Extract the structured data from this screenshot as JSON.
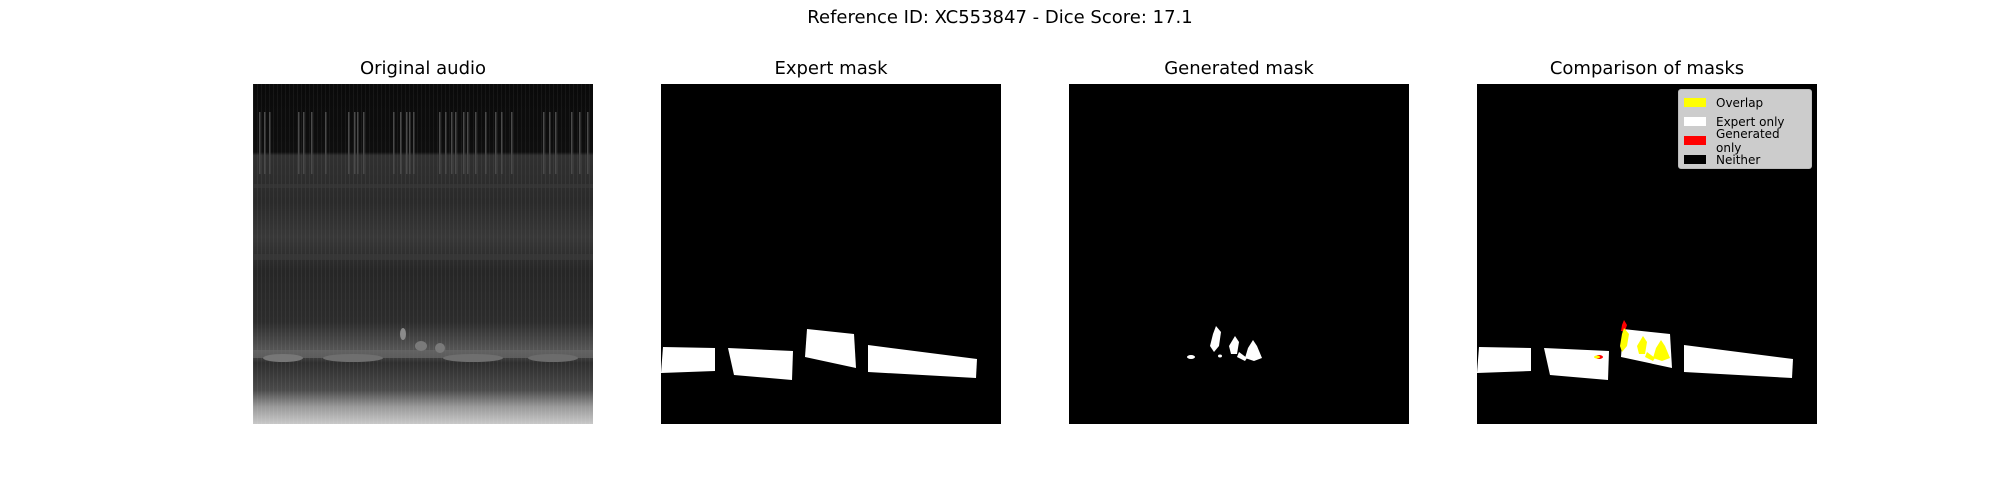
{
  "figure": {
    "suptitle": "Reference ID: XC553847 - Dice Score: 17.1"
  },
  "panels": [
    {
      "title": "Original audio"
    },
    {
      "title": "Expert mask"
    },
    {
      "title": "Generated mask"
    },
    {
      "title": "Comparison of masks"
    }
  ],
  "legend": {
    "items": [
      {
        "label": "Overlap",
        "color": "#ffff00"
      },
      {
        "label": "Expert only",
        "color": "#ffffff"
      },
      {
        "label": "Generated only",
        "color": "#ff0000"
      },
      {
        "label": "Neither",
        "color": "#000000"
      }
    ]
  }
}
